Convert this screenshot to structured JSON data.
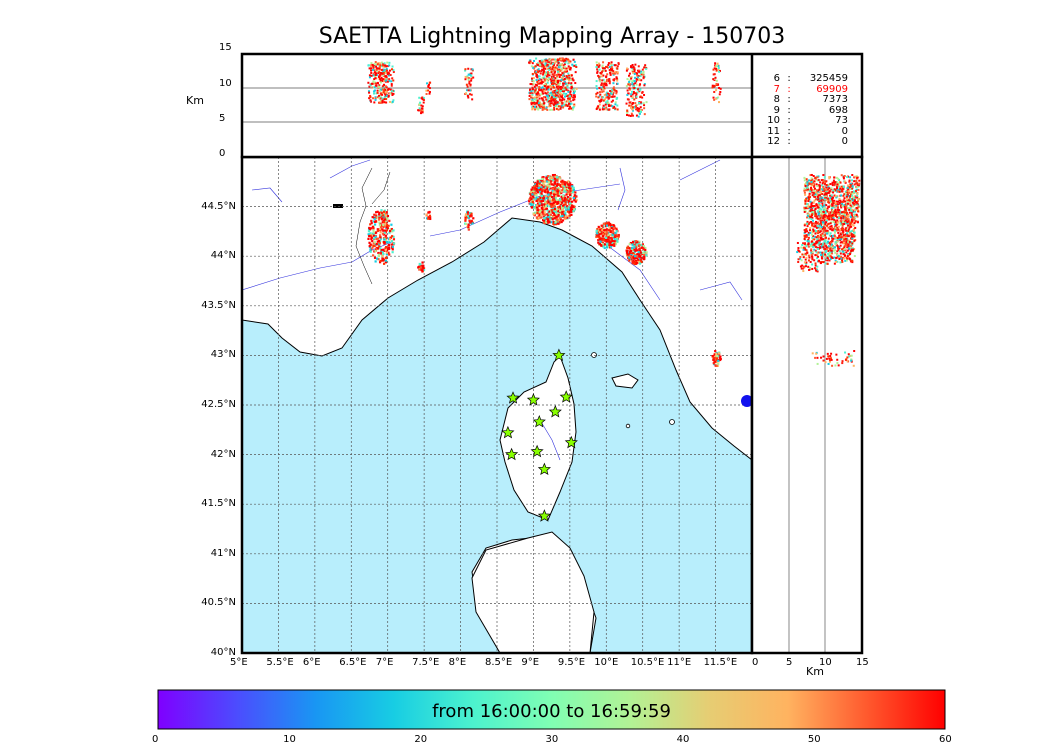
{
  "title": "SAETTA Lightning Mapping Array - 150703",
  "altitude_panel": {
    "ylabel": "Km",
    "yticks": [
      "15",
      "10",
      "5",
      "0"
    ]
  },
  "side_panel": {
    "xlabel": "Km",
    "xticks": [
      "0",
      "5",
      "10",
      "15"
    ]
  },
  "map": {
    "lon_ticks": [
      "5°E",
      "5.5°E",
      "6°E",
      "6.5°E",
      "7°E",
      "7.5°E",
      "8°E",
      "8.5°E",
      "9°E",
      "9.5°E",
      "10°E",
      "10.5°E",
      "11°E",
      "11.5°E"
    ],
    "lat_ticks": [
      "44.5°N",
      "44°N",
      "43.5°N",
      "43°N",
      "42.5°N",
      "42°N",
      "41.5°N",
      "41°N",
      "40.5°N",
      "40°N"
    ],
    "lon_range": [
      5,
      12
    ],
    "lat_range": [
      40,
      45
    ],
    "sea_color": "#b8eefc",
    "land_color": "#ffffff",
    "station_marker": "star",
    "station_color": "#88ff00",
    "stations": [
      [
        9.35,
        43.0
      ],
      [
        8.72,
        42.57
      ],
      [
        9.0,
        42.55
      ],
      [
        9.45,
        42.58
      ],
      [
        9.3,
        42.43
      ],
      [
        9.08,
        42.33
      ],
      [
        8.65,
        42.22
      ],
      [
        9.52,
        42.12
      ],
      [
        8.7,
        42.0
      ],
      [
        9.05,
        42.03
      ],
      [
        9.15,
        41.85
      ],
      [
        9.15,
        41.38
      ]
    ]
  },
  "station_counts": [
    {
      "level": "6",
      "count": "325459",
      "highlight": false
    },
    {
      "level": "7",
      "count": "69909",
      "highlight": true
    },
    {
      "level": "8",
      "count": "7373",
      "highlight": false
    },
    {
      "level": "9",
      "count": "698",
      "highlight": false
    },
    {
      "level": "10",
      "count": "73",
      "highlight": false
    },
    {
      "level": "11",
      "count": "0",
      "highlight": false
    },
    {
      "level": "12",
      "count": "0",
      "highlight": false
    }
  ],
  "highlight_color": "#ff0000",
  "colorbar": {
    "label": "from 16:00:00 to 16:59:59",
    "ticks": [
      "0",
      "10",
      "20",
      "30",
      "40",
      "50",
      "60"
    ],
    "range": [
      0,
      60
    ],
    "colormap": "rainbow"
  },
  "lightning_clusters": [
    {
      "lon": 6.9,
      "lat": 44.2,
      "rlon": 0.18,
      "rlat": 0.28,
      "alt": [
        8,
        14
      ],
      "n": 260
    },
    {
      "lon": 7.45,
      "lat": 43.9,
      "rlon": 0.05,
      "rlat": 0.05,
      "alt": [
        6.5,
        9
      ],
      "n": 25
    },
    {
      "lon": 7.55,
      "lat": 44.42,
      "rlon": 0.04,
      "rlat": 0.04,
      "alt": [
        9,
        11
      ],
      "n": 12
    },
    {
      "lon": 8.1,
      "lat": 44.38,
      "rlon": 0.06,
      "rlat": 0.1,
      "alt": [
        8,
        13
      ],
      "n": 40
    },
    {
      "lon": 9.25,
      "lat": 44.58,
      "rlon": 0.33,
      "rlat": 0.25,
      "alt": [
        7,
        14.5
      ],
      "n": 750
    },
    {
      "lon": 10.0,
      "lat": 44.22,
      "rlon": 0.16,
      "rlat": 0.13,
      "alt": [
        7,
        14
      ],
      "n": 220
    },
    {
      "lon": 10.4,
      "lat": 44.05,
      "rlon": 0.14,
      "rlat": 0.12,
      "alt": [
        6,
        14
      ],
      "n": 180
    },
    {
      "lon": 11.5,
      "lat": 42.98,
      "rlon": 0.06,
      "rlat": 0.08,
      "alt": [
        8,
        14
      ],
      "n": 45
    }
  ]
}
